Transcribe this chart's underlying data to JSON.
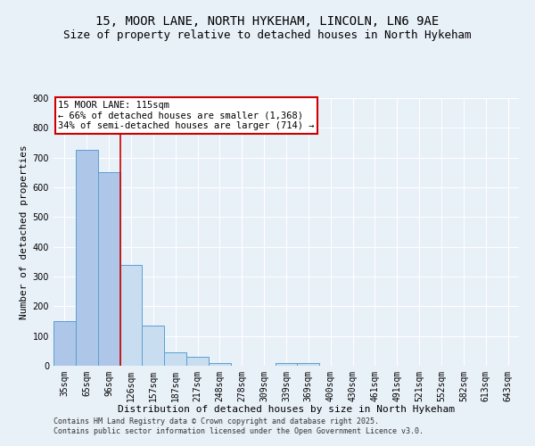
{
  "title1": "15, MOOR LANE, NORTH HYKEHAM, LINCOLN, LN6 9AE",
  "title2": "Size of property relative to detached houses in North Hykeham",
  "xlabel": "Distribution of detached houses by size in North Hykeham",
  "ylabel": "Number of detached properties",
  "categories": [
    "35sqm",
    "65sqm",
    "96sqm",
    "126sqm",
    "157sqm",
    "187sqm",
    "217sqm",
    "248sqm",
    "278sqm",
    "309sqm",
    "339sqm",
    "369sqm",
    "400sqm",
    "430sqm",
    "461sqm",
    "491sqm",
    "521sqm",
    "552sqm",
    "582sqm",
    "613sqm",
    "643sqm"
  ],
  "values": [
    150,
    725,
    650,
    340,
    135,
    45,
    30,
    10,
    0,
    0,
    10,
    10,
    0,
    0,
    0,
    0,
    0,
    0,
    0,
    0,
    0
  ],
  "bar_color_left": "#aec6e8",
  "bar_color_right": "#c9ddf0",
  "bar_edge_color": "#5a9fd4",
  "property_line_color": "#cc0000",
  "annotation_line1": "15 MOOR LANE: 115sqm",
  "annotation_line2": "← 66% of detached houses are smaller (1,368)",
  "annotation_line3": "34% of semi-detached houses are larger (714) →",
  "annotation_box_color": "#cc0000",
  "annotation_bg": "#ffffff",
  "ylim": [
    0,
    900
  ],
  "yticks": [
    0,
    100,
    200,
    300,
    400,
    500,
    600,
    700,
    800,
    900
  ],
  "footer_line1": "Contains HM Land Registry data © Crown copyright and database right 2025.",
  "footer_line2": "Contains public sector information licensed under the Open Government Licence v3.0.",
  "background_color": "#e8f0f8",
  "plot_bg_color": "#e8f0f8",
  "grid_color": "#ffffff",
  "title1_fontsize": 10,
  "title2_fontsize": 9,
  "axis_fontsize": 8,
  "tick_fontsize": 7,
  "annotation_fontsize": 7.5,
  "footer_fontsize": 6
}
